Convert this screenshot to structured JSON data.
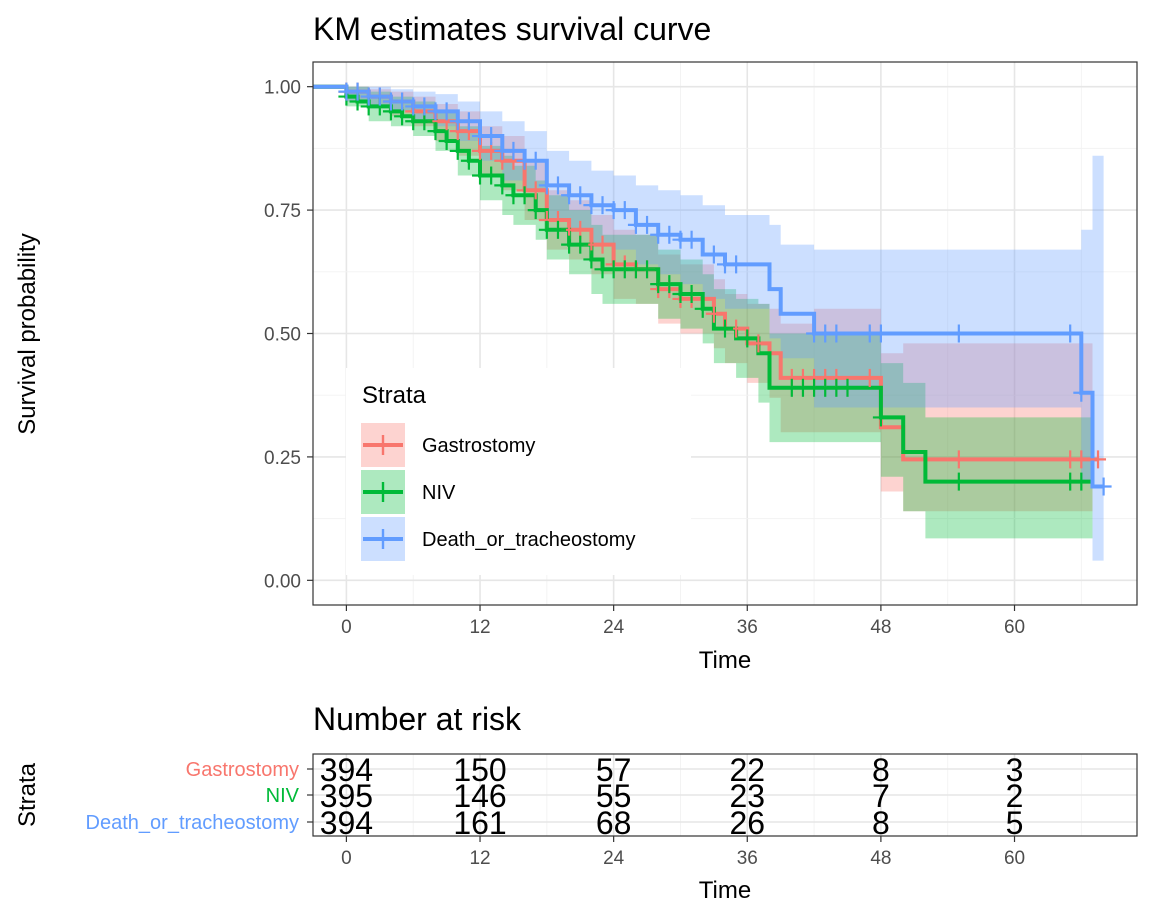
{
  "chart_data": [
    {
      "type": "line",
      "subtype": "kaplan-meier-step",
      "title": "KM estimates survival curve",
      "xlabel": "Time",
      "ylabel": "Survival probability",
      "xlim": [
        -3,
        71
      ],
      "ylim": [
        -0.05,
        1.05
      ],
      "xticks": [
        0,
        12,
        24,
        36,
        48,
        60
      ],
      "yticks": [
        0.0,
        0.25,
        0.5,
        0.75,
        1.0
      ],
      "ytick_labels": [
        "0.00",
        "0.25",
        "0.50",
        "0.75",
        "1.00"
      ],
      "grid": true,
      "confidence_bands": true,
      "legend": {
        "title": "Strata",
        "placement": "inside-bottom-left"
      },
      "series": [
        {
          "name": "Gastrostomy",
          "color": "#F8766D",
          "steps": [
            [
              -3,
              1.0
            ],
            [
              0,
              0.99
            ],
            [
              2,
              0.98
            ],
            [
              4,
              0.97
            ],
            [
              6,
              0.95
            ],
            [
              8,
              0.93
            ],
            [
              10,
              0.91
            ],
            [
              12,
              0.87
            ],
            [
              14,
              0.85
            ],
            [
              16,
              0.79
            ],
            [
              18,
              0.73
            ],
            [
              20,
              0.71
            ],
            [
              22,
              0.68
            ],
            [
              24,
              0.64
            ],
            [
              26,
              0.63
            ],
            [
              28,
              0.59
            ],
            [
              30,
              0.57
            ],
            [
              33,
              0.54
            ],
            [
              34,
              0.51
            ],
            [
              36,
              0.48
            ],
            [
              38,
              0.46
            ],
            [
              39,
              0.41
            ],
            [
              48,
              0.31
            ],
            [
              50,
              0.245
            ],
            [
              67.5,
              0.245
            ]
          ],
          "ci_upper": [
            [
              -3,
              1.0
            ],
            [
              0,
              1.0
            ],
            [
              2,
              0.995
            ],
            [
              4,
              0.99
            ],
            [
              6,
              0.98
            ],
            [
              8,
              0.965
            ],
            [
              10,
              0.95
            ],
            [
              12,
              0.92
            ],
            [
              14,
              0.9
            ],
            [
              16,
              0.85
            ],
            [
              18,
              0.79
            ],
            [
              20,
              0.77
            ],
            [
              22,
              0.74
            ],
            [
              24,
              0.71
            ],
            [
              26,
              0.7
            ],
            [
              28,
              0.66
            ],
            [
              30,
              0.64
            ],
            [
              33,
              0.61
            ],
            [
              34,
              0.58
            ],
            [
              36,
              0.56
            ],
            [
              38,
              0.55
            ],
            [
              39,
              0.52
            ],
            [
              42,
              0.55
            ],
            [
              48,
              0.46
            ],
            [
              50,
              0.48
            ],
            [
              67,
              0.48
            ]
          ],
          "ci_lower": [
            [
              -3,
              1.0
            ],
            [
              0,
              0.97
            ],
            [
              2,
              0.96
            ],
            [
              4,
              0.94
            ],
            [
              6,
              0.92
            ],
            [
              8,
              0.89
            ],
            [
              10,
              0.86
            ],
            [
              12,
              0.82
            ],
            [
              14,
              0.79
            ],
            [
              16,
              0.73
            ],
            [
              18,
              0.67
            ],
            [
              20,
              0.65
            ],
            [
              22,
              0.62
            ],
            [
              24,
              0.57
            ],
            [
              26,
              0.56
            ],
            [
              28,
              0.52
            ],
            [
              30,
              0.5
            ],
            [
              33,
              0.47
            ],
            [
              34,
              0.44
            ],
            [
              36,
              0.4
            ],
            [
              38,
              0.37
            ],
            [
              39,
              0.3
            ],
            [
              48,
              0.18
            ],
            [
              50,
              0.14
            ],
            [
              67,
              0.14
            ]
          ],
          "censor_x": [
            0,
            1,
            2,
            3,
            4,
            5,
            6,
            7,
            8,
            9,
            10,
            11,
            12,
            13,
            14,
            15,
            16,
            17,
            18,
            19,
            20,
            21,
            22,
            23,
            24,
            25,
            26,
            27,
            28,
            29,
            30,
            31,
            33,
            35,
            37,
            40,
            41,
            42,
            43,
            44,
            47,
            55,
            65,
            66,
            67.5
          ]
        },
        {
          "name": "NIV",
          "color": "#00BA38",
          "steps": [
            [
              -3,
              1.0
            ],
            [
              0,
              0.98
            ],
            [
              1,
              0.97
            ],
            [
              2,
              0.96
            ],
            [
              4,
              0.95
            ],
            [
              5,
              0.94
            ],
            [
              6,
              0.93
            ],
            [
              8,
              0.91
            ],
            [
              9,
              0.89
            ],
            [
              10,
              0.87
            ],
            [
              11,
              0.85
            ],
            [
              12,
              0.82
            ],
            [
              14,
              0.8
            ],
            [
              15,
              0.78
            ],
            [
              17,
              0.75
            ],
            [
              18,
              0.71
            ],
            [
              20,
              0.68
            ],
            [
              22,
              0.65
            ],
            [
              23,
              0.63
            ],
            [
              28,
              0.6
            ],
            [
              30,
              0.58
            ],
            [
              32,
              0.55
            ],
            [
              33,
              0.51
            ],
            [
              35,
              0.49
            ],
            [
              37,
              0.46
            ],
            [
              38,
              0.39
            ],
            [
              48,
              0.33
            ],
            [
              50,
              0.26
            ],
            [
              52,
              0.2
            ],
            [
              67,
              0.2
            ]
          ],
          "ci_upper": [
            [
              -3,
              1.0
            ],
            [
              0,
              1.0
            ],
            [
              2,
              0.99
            ],
            [
              4,
              0.98
            ],
            [
              6,
              0.97
            ],
            [
              8,
              0.95
            ],
            [
              10,
              0.92
            ],
            [
              12,
              0.88
            ],
            [
              14,
              0.86
            ],
            [
              15,
              0.84
            ],
            [
              17,
              0.81
            ],
            [
              18,
              0.78
            ],
            [
              20,
              0.75
            ],
            [
              22,
              0.72
            ],
            [
              23,
              0.7
            ],
            [
              28,
              0.67
            ],
            [
              30,
              0.65
            ],
            [
              32,
              0.62
            ],
            [
              33,
              0.59
            ],
            [
              35,
              0.57
            ],
            [
              37,
              0.56
            ],
            [
              38,
              0.5
            ],
            [
              48,
              0.44
            ],
            [
              50,
              0.4
            ],
            [
              52,
              0.33
            ],
            [
              67,
              0.33
            ]
          ],
          "ci_lower": [
            [
              -3,
              1.0
            ],
            [
              0,
              0.96
            ],
            [
              2,
              0.93
            ],
            [
              4,
              0.92
            ],
            [
              6,
              0.9
            ],
            [
              8,
              0.87
            ],
            [
              10,
              0.82
            ],
            [
              12,
              0.77
            ],
            [
              14,
              0.74
            ],
            [
              15,
              0.72
            ],
            [
              17,
              0.69
            ],
            [
              18,
              0.65
            ],
            [
              20,
              0.62
            ],
            [
              22,
              0.58
            ],
            [
              23,
              0.56
            ],
            [
              28,
              0.53
            ],
            [
              30,
              0.51
            ],
            [
              32,
              0.48
            ],
            [
              33,
              0.44
            ],
            [
              35,
              0.41
            ],
            [
              37,
              0.36
            ],
            [
              38,
              0.28
            ],
            [
              48,
              0.21
            ],
            [
              50,
              0.14
            ],
            [
              52,
              0.085
            ],
            [
              67,
              0.085
            ]
          ],
          "censor_x": [
            0,
            1,
            2,
            3,
            4,
            5,
            6,
            7,
            8,
            9,
            10,
            11,
            12,
            13,
            14,
            15,
            16,
            17,
            18,
            19,
            20,
            21,
            22,
            23,
            24,
            25,
            26,
            27,
            28,
            29,
            30,
            31,
            32,
            34,
            36,
            40,
            41,
            42,
            43,
            44,
            45,
            48,
            55,
            65,
            66
          ]
        },
        {
          "name": "Death_or_tracheostomy",
          "color": "#619CFF",
          "steps": [
            [
              -3,
              1.0
            ],
            [
              0,
              0.99
            ],
            [
              2,
              0.98
            ],
            [
              4,
              0.97
            ],
            [
              6,
              0.96
            ],
            [
              8,
              0.95
            ],
            [
              10,
              0.93
            ],
            [
              12,
              0.9
            ],
            [
              14,
              0.87
            ],
            [
              16,
              0.85
            ],
            [
              18,
              0.8
            ],
            [
              20,
              0.78
            ],
            [
              22,
              0.76
            ],
            [
              24,
              0.75
            ],
            [
              26,
              0.72
            ],
            [
              28,
              0.7
            ],
            [
              30,
              0.69
            ],
            [
              32,
              0.66
            ],
            [
              34,
              0.64
            ],
            [
              38,
              0.59
            ],
            [
              39,
              0.54
            ],
            [
              42,
              0.5
            ],
            [
              66,
              0.38
            ],
            [
              67,
              0.19
            ],
            [
              68,
              0.19
            ]
          ],
          "ci_upper": [
            [
              -3,
              1.0
            ],
            [
              0,
              1.0
            ],
            [
              4,
              0.995
            ],
            [
              6,
              0.99
            ],
            [
              8,
              0.985
            ],
            [
              10,
              0.97
            ],
            [
              12,
              0.95
            ],
            [
              14,
              0.93
            ],
            [
              16,
              0.91
            ],
            [
              18,
              0.87
            ],
            [
              20,
              0.85
            ],
            [
              22,
              0.83
            ],
            [
              24,
              0.82
            ],
            [
              26,
              0.8
            ],
            [
              28,
              0.79
            ],
            [
              30,
              0.78
            ],
            [
              32,
              0.76
            ],
            [
              34,
              0.74
            ],
            [
              38,
              0.72
            ],
            [
              39,
              0.68
            ],
            [
              42,
              0.67
            ],
            [
              66,
              0.71
            ],
            [
              67,
              0.86
            ],
            [
              68,
              0.86
            ]
          ],
          "ci_lower": [
            [
              -3,
              1.0
            ],
            [
              0,
              0.97
            ],
            [
              2,
              0.96
            ],
            [
              4,
              0.95
            ],
            [
              6,
              0.93
            ],
            [
              8,
              0.92
            ],
            [
              10,
              0.89
            ],
            [
              12,
              0.85
            ],
            [
              14,
              0.81
            ],
            [
              16,
              0.79
            ],
            [
              18,
              0.73
            ],
            [
              20,
              0.71
            ],
            [
              22,
              0.68
            ],
            [
              24,
              0.67
            ],
            [
              26,
              0.64
            ],
            [
              28,
              0.62
            ],
            [
              30,
              0.6
            ],
            [
              32,
              0.57
            ],
            [
              34,
              0.55
            ],
            [
              38,
              0.49
            ],
            [
              39,
              0.45
            ],
            [
              42,
              0.35
            ],
            [
              66,
              0.2
            ],
            [
              67,
              0.04
            ],
            [
              68,
              0.04
            ]
          ],
          "censor_x": [
            0,
            1,
            2,
            3,
            4,
            5,
            6,
            7,
            8,
            9,
            10,
            11,
            12,
            13,
            14,
            15,
            16,
            17,
            18,
            19,
            20,
            21,
            22,
            23,
            24,
            25,
            26,
            27,
            28,
            29,
            30,
            31,
            33,
            34,
            35,
            42,
            43,
            44,
            47,
            48,
            55,
            65,
            66,
            68
          ]
        }
      ]
    },
    {
      "type": "table",
      "title": "Number at risk",
      "xlabel": "Time",
      "ylabel": "Strata",
      "xlim": [
        -3,
        71
      ],
      "xticks": [
        0,
        12,
        24,
        36,
        48,
        60
      ],
      "grid": true,
      "rows": [
        {
          "name": "Gastrostomy",
          "color": "#F8766D",
          "values": [
            "394",
            "150",
            "57",
            "22",
            "8",
            "3"
          ]
        },
        {
          "name": "NIV",
          "color": "#00BA38",
          "values": [
            "395",
            "146",
            "55",
            "23",
            "7",
            "2"
          ]
        },
        {
          "name": "Death_or_tracheostomy",
          "color": "#619CFF",
          "values": [
            "394",
            "161",
            "68",
            "26",
            "8",
            "5"
          ]
        }
      ]
    }
  ]
}
